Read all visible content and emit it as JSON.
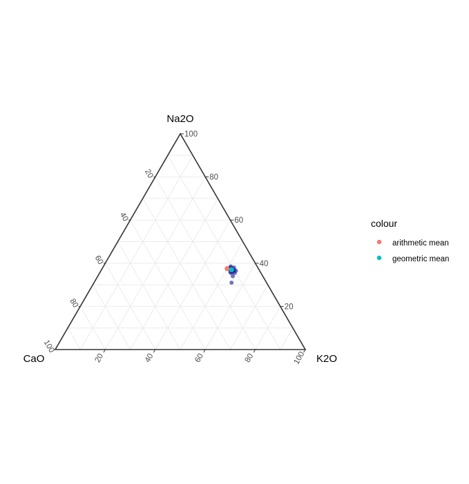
{
  "chart_data": {
    "type": "scatter",
    "subtype": "ternary",
    "grid": true,
    "axes": {
      "top": "Na2O",
      "left": "CaO",
      "right": "K2O"
    },
    "ticks": [
      20,
      40,
      60,
      80,
      100
    ],
    "legend": {
      "title": "colour",
      "position": "right",
      "entries": [
        {
          "label": "arithmetic mean",
          "color": "#F8766D"
        },
        {
          "label": "geometric mean",
          "color": "#00BFC4"
        }
      ]
    },
    "series": [
      {
        "color": "#00008B",
        "opacity": 0.55,
        "points": [
          {
            "Na2O": 37.5,
            "CaO": 10.5,
            "K2O": 52.0
          },
          {
            "Na2O": 37.0,
            "CaO": 10.0,
            "K2O": 53.0
          },
          {
            "Na2O": 36.5,
            "CaO": 9.5,
            "K2O": 54.0
          },
          {
            "Na2O": 38.0,
            "CaO": 9.5,
            "K2O": 52.5
          },
          {
            "Na2O": 36.0,
            "CaO": 11.0,
            "K2O": 53.0
          },
          {
            "Na2O": 35.5,
            "CaO": 10.5,
            "K2O": 54.0
          },
          {
            "Na2O": 37.0,
            "CaO": 11.5,
            "K2O": 51.5
          },
          {
            "Na2O": 38.5,
            "CaO": 10.5,
            "K2O": 51.0
          },
          {
            "Na2O": 36.0,
            "CaO": 12.0,
            "K2O": 52.0
          },
          {
            "Na2O": 35.5,
            "CaO": 12.0,
            "K2O": 52.5
          },
          {
            "Na2O": 37.5,
            "CaO": 12.0,
            "K2O": 50.5
          },
          {
            "Na2O": 38.0,
            "CaO": 11.0,
            "K2O": 51.0
          },
          {
            "Na2O": 34.0,
            "CaO": 12.0,
            "K2O": 54.0
          },
          {
            "Na2O": 31.0,
            "CaO": 14.0,
            "K2O": 55.0
          }
        ]
      },
      {
        "name": "arithmetic mean",
        "color": "#F8766D",
        "points": [
          {
            "Na2O": 37.5,
            "CaO": 12.5,
            "K2O": 50.0
          }
        ]
      },
      {
        "name": "geometric mean",
        "color": "#00BFC4",
        "points": [
          {
            "Na2O": 37.0,
            "CaO": 11.0,
            "K2O": 52.0
          }
        ]
      }
    ]
  }
}
